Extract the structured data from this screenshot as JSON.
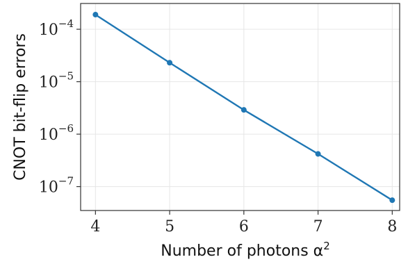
{
  "chart_data": {
    "type": "line",
    "xlabel": "Number of photons α",
    "xlabel_superscript": "2",
    "ylabel": "CNOT bit-flip errors",
    "yscale": "log",
    "xlim": [
      3.8,
      8.1
    ],
    "ylim": [
      3.5e-08,
      0.00031
    ],
    "grid": true,
    "color": "#1f77b4",
    "x_ticks": [
      4,
      5,
      6,
      7,
      8
    ],
    "x_tick_labels": [
      "4",
      "5",
      "6",
      "7",
      "8"
    ],
    "y_ticks": [
      {
        "value": 0.0001,
        "base": "10",
        "exp": "−4"
      },
      {
        "value": 1e-05,
        "base": "10",
        "exp": "−5"
      },
      {
        "value": 1e-06,
        "base": "10",
        "exp": "−6"
      },
      {
        "value": 1e-07,
        "base": "10",
        "exp": "−7"
      }
    ],
    "series": [
      {
        "x": [
          4,
          5,
          6,
          7,
          8
        ],
        "y": [
          0.00019,
          2.3e-05,
          2.9e-06,
          4.2e-07,
          5.5e-08
        ]
      }
    ]
  }
}
